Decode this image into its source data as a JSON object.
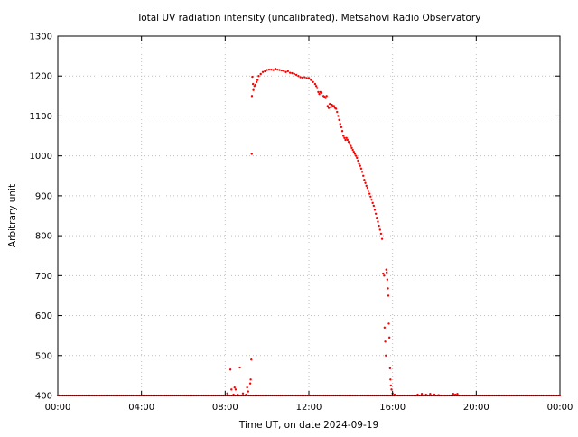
{
  "chart_data": {
    "type": "scatter",
    "title": "Total UV radiation intensity (uncalibrated). Metsähovi Radio Observatory",
    "xlabel": "Time UT, on date 2024-09-19",
    "ylabel": "Arbitrary unit",
    "xlim": [
      0,
      24
    ],
    "ylim": [
      400,
      1300
    ],
    "x_ticks": [
      0,
      4,
      8,
      12,
      16,
      20,
      24
    ],
    "x_tick_labels": [
      "00:00",
      "04:00",
      "08:00",
      "12:00",
      "16:00",
      "20:00",
      "00:00"
    ],
    "y_ticks": [
      400,
      500,
      600,
      700,
      800,
      900,
      1000,
      1100,
      1200,
      1300
    ],
    "y_tick_labels": [
      "400",
      "500",
      "600",
      "700",
      "800",
      "900",
      "1000",
      "1100",
      "1200",
      "1300"
    ],
    "grid": true,
    "marker_color": "#ff0000",
    "series": [
      {
        "points": [
          [
            8.1,
            405
          ],
          [
            8.25,
            465
          ],
          [
            8.3,
            415
          ],
          [
            8.4,
            402
          ],
          [
            8.45,
            420
          ],
          [
            8.5,
            415
          ],
          [
            8.6,
            402
          ],
          [
            8.7,
            470
          ],
          [
            8.85,
            405
          ],
          [
            9.0,
            402
          ],
          [
            9.05,
            420
          ],
          [
            9.1,
            410
          ],
          [
            9.2,
            430
          ],
          [
            9.22,
            440
          ],
          [
            9.25,
            490
          ],
          [
            9.27,
            1005
          ],
          [
            9.28,
            1150
          ],
          [
            9.3,
            1198
          ],
          [
            9.33,
            1180
          ],
          [
            9.35,
            1165
          ],
          [
            9.4,
            1175
          ],
          [
            9.45,
            1178
          ],
          [
            9.5,
            1185
          ],
          [
            9.55,
            1190
          ],
          [
            9.6,
            1200
          ],
          [
            9.7,
            1205
          ],
          [
            9.8,
            1210
          ],
          [
            9.9,
            1212
          ],
          [
            10.0,
            1215
          ],
          [
            10.1,
            1216
          ],
          [
            10.2,
            1216
          ],
          [
            10.3,
            1215
          ],
          [
            10.4,
            1218
          ],
          [
            10.5,
            1216
          ],
          [
            10.6,
            1215
          ],
          [
            10.7,
            1214
          ],
          [
            10.8,
            1213
          ],
          [
            10.9,
            1210
          ],
          [
            11.0,
            1212
          ],
          [
            11.1,
            1208
          ],
          [
            11.2,
            1207
          ],
          [
            11.3,
            1205
          ],
          [
            11.4,
            1203
          ],
          [
            11.5,
            1200
          ],
          [
            11.6,
            1197
          ],
          [
            11.7,
            1196
          ],
          [
            11.8,
            1197
          ],
          [
            11.9,
            1195
          ],
          [
            12.0,
            1195
          ],
          [
            12.1,
            1190
          ],
          [
            12.2,
            1185
          ],
          [
            12.3,
            1180
          ],
          [
            12.35,
            1175
          ],
          [
            12.4,
            1170
          ],
          [
            12.45,
            1160
          ],
          [
            12.5,
            1155
          ],
          [
            12.55,
            1160
          ],
          [
            12.6,
            1158
          ],
          [
            12.7,
            1150
          ],
          [
            12.75,
            1148
          ],
          [
            12.8,
            1145
          ],
          [
            12.85,
            1150
          ],
          [
            12.9,
            1125
          ],
          [
            12.95,
            1120
          ],
          [
            13.0,
            1130
          ],
          [
            13.05,
            1122
          ],
          [
            13.1,
            1128
          ],
          [
            13.15,
            1125
          ],
          [
            13.2,
            1125
          ],
          [
            13.25,
            1120
          ],
          [
            13.3,
            1118
          ],
          [
            13.35,
            1110
          ],
          [
            13.4,
            1100
          ],
          [
            13.45,
            1090
          ],
          [
            13.5,
            1080
          ],
          [
            13.55,
            1072
          ],
          [
            13.6,
            1062
          ],
          [
            13.65,
            1050
          ],
          [
            13.7,
            1045
          ],
          [
            13.75,
            1040
          ],
          [
            13.8,
            1045
          ],
          [
            13.85,
            1040
          ],
          [
            13.9,
            1035
          ],
          [
            13.95,
            1030
          ],
          [
            14.0,
            1025
          ],
          [
            14.05,
            1020
          ],
          [
            14.1,
            1015
          ],
          [
            14.15,
            1010
          ],
          [
            14.2,
            1005
          ],
          [
            14.25,
            1000
          ],
          [
            14.3,
            995
          ],
          [
            14.35,
            988
          ],
          [
            14.4,
            980
          ],
          [
            14.45,
            975
          ],
          [
            14.5,
            968
          ],
          [
            14.55,
            960
          ],
          [
            14.6,
            950
          ],
          [
            14.65,
            940
          ],
          [
            14.7,
            932
          ],
          [
            14.75,
            925
          ],
          [
            14.8,
            920
          ],
          [
            14.85,
            912
          ],
          [
            14.9,
            905
          ],
          [
            14.95,
            898
          ],
          [
            15.0,
            890
          ],
          [
            15.05,
            882
          ],
          [
            15.1,
            875
          ],
          [
            15.15,
            865
          ],
          [
            15.2,
            855
          ],
          [
            15.25,
            845
          ],
          [
            15.3,
            835
          ],
          [
            15.35,
            825
          ],
          [
            15.4,
            815
          ],
          [
            15.45,
            805
          ],
          [
            15.5,
            792
          ],
          [
            15.55,
            705
          ],
          [
            15.6,
            700
          ],
          [
            15.62,
            570
          ],
          [
            15.65,
            535
          ],
          [
            15.68,
            500
          ],
          [
            15.7,
            715
          ],
          [
            15.72,
            708
          ],
          [
            15.75,
            690
          ],
          [
            15.78,
            668
          ],
          [
            15.8,
            650
          ],
          [
            15.82,
            580
          ],
          [
            15.85,
            545
          ],
          [
            15.88,
            468
          ],
          [
            15.9,
            440
          ],
          [
            15.92,
            425
          ],
          [
            15.95,
            415
          ],
          [
            16.0,
            405
          ],
          [
            16.1,
            402
          ],
          [
            17.2,
            402
          ],
          [
            17.4,
            404
          ],
          [
            17.6,
            402
          ],
          [
            17.8,
            404
          ],
          [
            18.0,
            402
          ],
          [
            18.2,
            401
          ],
          [
            18.9,
            404
          ],
          [
            19.0,
            402
          ],
          [
            19.1,
            404
          ]
        ],
        "baseline": {
          "value": 400,
          "x_start": 0,
          "x_end": 24,
          "step": 0.08
        }
      }
    ]
  }
}
